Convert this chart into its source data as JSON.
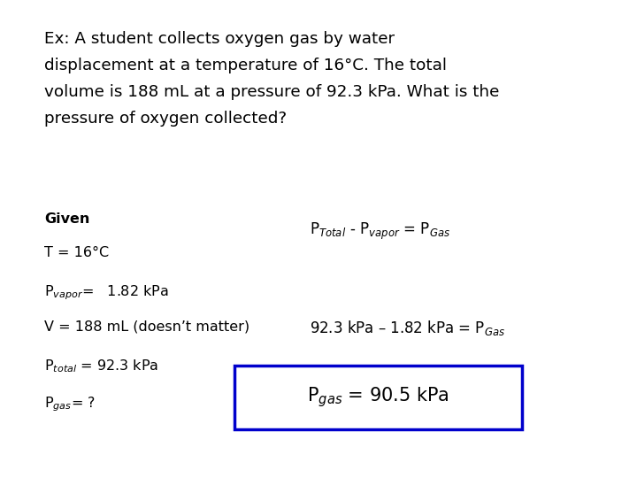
{
  "bg_color": "#ffffff",
  "title_lines": [
    "Ex: A student collects oxygen gas by water",
    "displacement at a temperature of 16°C. The total",
    "volume is 188 mL at a pressure of 92.3 kPa. What is the",
    "pressure of oxygen collected?"
  ],
  "given_label": "Given",
  "given_items": [
    "T = 16°C",
    "P$_{vapor}$=   1.82 kPa",
    "V = 188 mL (doesn’t matter)",
    "P$_{total}$ = 92.3 kPa",
    "P$_{gas}$= ?"
  ],
  "formula": "P$_{Total}$ - P$_{vapor}$ = P$_{Gas}$",
  "step": "92.3 kPa – 1.82 kPa = P$_{Gas}$",
  "answer": "P$_{gas}$ = 90.5 kPa",
  "box_color": "#0000cc",
  "text_color": "#000000"
}
